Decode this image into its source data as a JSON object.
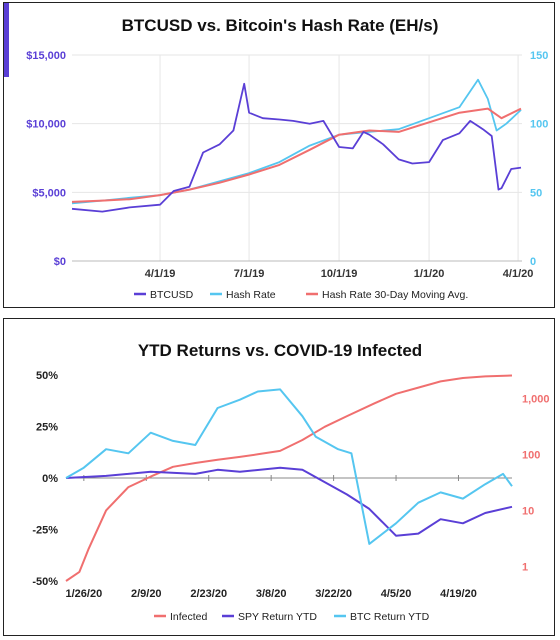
{
  "chart_data": [
    {
      "type": "line",
      "title": "BTCUSD vs. Bitcoin's Hash Rate (EH/s)",
      "x_ticks": [
        "4/1/19",
        "7/1/19",
        "10/1/19",
        "1/1/20",
        "4/1/20"
      ],
      "y_left": {
        "ticks": [
          "$0",
          "$5,000",
          "$10,000",
          "$15,000"
        ],
        "range": [
          0,
          15000
        ],
        "color": "#5a3fd6"
      },
      "y_right": {
        "ticks": [
          "0",
          "50",
          "100",
          "150"
        ],
        "range": [
          0,
          150
        ],
        "color": "#55c6f0"
      },
      "grid": true,
      "legend_position": "bottom",
      "x_domain": [
        "2019-01-01",
        "2020-04-05"
      ],
      "series": [
        {
          "name": "BTCUSD",
          "axis": "left",
          "color": "#5a3fd6",
          "x": [
            "2019-01-01",
            "2019-02-01",
            "2019-03-01",
            "2019-04-01",
            "2019-04-15",
            "2019-05-01",
            "2019-05-15",
            "2019-06-01",
            "2019-06-15",
            "2019-06-26",
            "2019-07-01",
            "2019-07-15",
            "2019-08-01",
            "2019-08-15",
            "2019-09-01",
            "2019-09-15",
            "2019-10-01",
            "2019-10-15",
            "2019-10-26",
            "2019-11-01",
            "2019-11-15",
            "2019-12-01",
            "2019-12-15",
            "2020-01-01",
            "2020-01-15",
            "2020-02-01",
            "2020-02-12",
            "2020-02-25",
            "2020-03-05",
            "2020-03-12",
            "2020-03-15",
            "2020-03-25",
            "2020-04-04"
          ],
          "values": [
            3800,
            3600,
            3900,
            4100,
            5100,
            5400,
            7900,
            8500,
            9500,
            12900,
            10800,
            10400,
            10300,
            10200,
            10000,
            10200,
            8300,
            8200,
            9400,
            9200,
            8500,
            7400,
            7100,
            7200,
            8800,
            9300,
            10200,
            9600,
            9100,
            5200,
            5300,
            6700,
            6800
          ]
        },
        {
          "name": "Hash Rate",
          "axis": "right",
          "color": "#55c6f0",
          "x": [
            "2019-01-01",
            "2019-02-01",
            "2019-03-01",
            "2019-04-01",
            "2019-05-01",
            "2019-06-01",
            "2019-07-01",
            "2019-08-01",
            "2019-09-01",
            "2019-10-01",
            "2019-11-01",
            "2019-12-01",
            "2020-01-01",
            "2020-02-01",
            "2020-02-20",
            "2020-03-01",
            "2020-03-10",
            "2020-03-20",
            "2020-04-04"
          ],
          "values": [
            42,
            44,
            46,
            48,
            52,
            58,
            64,
            72,
            84,
            92,
            94,
            96,
            104,
            112,
            132,
            118,
            95,
            100,
            110
          ]
        },
        {
          "name": "Hash Rate 30-Day Moving Avg.",
          "axis": "right",
          "color": "#f06f6f",
          "x": [
            "2019-01-01",
            "2019-02-01",
            "2019-03-01",
            "2019-04-01",
            "2019-05-01",
            "2019-06-01",
            "2019-07-01",
            "2019-08-01",
            "2019-09-01",
            "2019-10-01",
            "2019-11-01",
            "2019-12-01",
            "2020-01-01",
            "2020-02-01",
            "2020-03-01",
            "2020-03-15",
            "2020-04-04"
          ],
          "values": [
            43,
            44,
            45,
            48,
            52,
            57,
            63,
            70,
            81,
            92,
            95,
            94,
            101,
            108,
            111,
            104,
            111
          ]
        }
      ]
    },
    {
      "type": "line",
      "title": "YTD Returns vs. COVID-19 Infected",
      "x_ticks": [
        "1/26/20",
        "2/9/20",
        "2/23/20",
        "3/8/20",
        "3/22/20",
        "4/5/20",
        "4/19/20"
      ],
      "y_left": {
        "ticks": [
          "50%",
          "25%",
          "0%",
          "-25%",
          "-50%"
        ],
        "range": [
          -0.5,
          0.5
        ]
      },
      "y_right": {
        "ticks": [
          "1,000",
          "100",
          "10",
          "1"
        ],
        "scale": "log",
        "range": [
          0.55,
          2600
        ],
        "color": "#f06f6f"
      },
      "grid": false,
      "legend_position": "bottom",
      "x_domain": [
        "2020-01-22",
        "2020-05-01"
      ],
      "series": [
        {
          "name": "Infected",
          "axis": "right",
          "color": "#f06f6f",
          "x": [
            "2020-01-22",
            "2020-01-25",
            "2020-01-27",
            "2020-01-31",
            "2020-02-05",
            "2020-02-10",
            "2020-02-15",
            "2020-02-20",
            "2020-02-25",
            "2020-03-01",
            "2020-03-05",
            "2020-03-10",
            "2020-03-15",
            "2020-03-20",
            "2020-03-25",
            "2020-03-31",
            "2020-04-05",
            "2020-04-10",
            "2020-04-15",
            "2020-04-20",
            "2020-04-25",
            "2020-05-01"
          ],
          "values": [
            0.55,
            0.8,
            2,
            10,
            26,
            40,
            60,
            70,
            80,
            90,
            100,
            115,
            180,
            310,
            480,
            800,
            1200,
            1550,
            2000,
            2300,
            2450,
            2550
          ]
        },
        {
          "name": "SPY Return YTD",
          "axis": "left",
          "color": "#5a3fd6",
          "x": [
            "2020-01-22",
            "2020-01-31",
            "2020-02-10",
            "2020-02-20",
            "2020-02-25",
            "2020-03-01",
            "2020-03-10",
            "2020-03-15",
            "2020-03-20",
            "2020-03-25",
            "2020-03-30",
            "2020-04-05",
            "2020-04-10",
            "2020-04-15",
            "2020-04-20",
            "2020-04-25",
            "2020-05-01"
          ],
          "values": [
            0.0,
            0.01,
            0.03,
            0.02,
            0.04,
            0.03,
            0.05,
            0.04,
            -0.02,
            -0.08,
            -0.15,
            -0.28,
            -0.27,
            -0.2,
            -0.22,
            -0.17,
            -0.14
          ]
        },
        {
          "name": "BTC Return YTD",
          "axis": "left",
          "color": "#55c6f0",
          "x": [
            "2020-01-22",
            "2020-01-26",
            "2020-01-31",
            "2020-02-05",
            "2020-02-10",
            "2020-02-15",
            "2020-02-20",
            "2020-02-25",
            "2020-03-01",
            "2020-03-05",
            "2020-03-10",
            "2020-03-15",
            "2020-03-18",
            "2020-03-23",
            "2020-03-26",
            "2020-03-30",
            "2020-04-05",
            "2020-04-10",
            "2020-04-15",
            "2020-04-20",
            "2020-04-25",
            "2020-04-29",
            "2020-05-01"
          ],
          "values": [
            0.0,
            0.05,
            0.14,
            0.12,
            0.22,
            0.18,
            0.16,
            0.34,
            0.38,
            0.42,
            0.43,
            0.3,
            0.2,
            0.14,
            0.12,
            -0.32,
            -0.22,
            -0.12,
            -0.07,
            -0.1,
            -0.03,
            0.02,
            -0.04
          ]
        }
      ]
    }
  ]
}
